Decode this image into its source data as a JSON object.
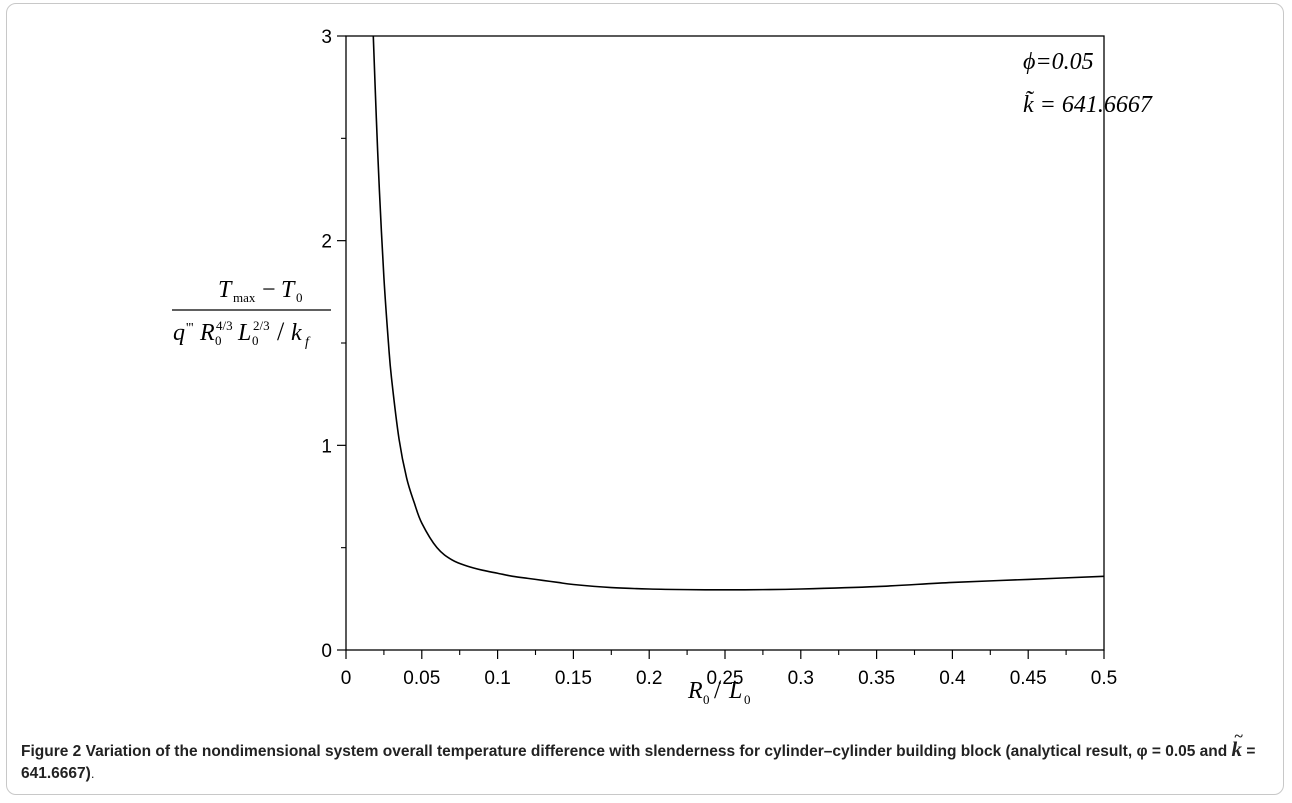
{
  "chart_data": {
    "type": "line",
    "title": "",
    "xlabel": "R0/L0",
    "ylabel": "(T_max − T_0) / (q''' R_0^{4/3} L_0^{2/3} / k_f)",
    "xlim": [
      0,
      0.5
    ],
    "ylim": [
      0,
      3
    ],
    "x_ticks": [
      "0",
      "0.05",
      "0.1",
      "0.15",
      "0.2",
      "0.25",
      "0.3",
      "0.35",
      "0.4",
      "0.45",
      "0.5"
    ],
    "y_ticks": [
      "0",
      "1",
      "2",
      "3"
    ],
    "grid": false,
    "series": [
      {
        "x": [
          0.018,
          0.02,
          0.022,
          0.025,
          0.028,
          0.03,
          0.035,
          0.04,
          0.045,
          0.05,
          0.06,
          0.07,
          0.08,
          0.09,
          0.1,
          0.11,
          0.12,
          0.13,
          0.14,
          0.15,
          0.175,
          0.2,
          0.225,
          0.25,
          0.275,
          0.3,
          0.35,
          0.4,
          0.45,
          0.5
        ],
        "y": [
          3.0,
          2.6,
          2.25,
          1.82,
          1.5,
          1.33,
          1.03,
          0.84,
          0.72,
          0.62,
          0.5,
          0.44,
          0.41,
          0.39,
          0.375,
          0.36,
          0.35,
          0.34,
          0.33,
          0.32,
          0.305,
          0.298,
          0.295,
          0.294,
          0.295,
          0.298,
          0.31,
          0.33,
          0.345,
          0.36
        ]
      }
    ],
    "annotations": {
      "phi_text": "ϕ=0.05",
      "k_text": "k̃ = 641.6667"
    }
  },
  "caption": {
    "label": "Figure 2",
    "text_before": " Variation of the nondimensional system overall temperature difference with slenderness for cylinder–cylinder building block (analytical result, ",
    "phi": "φ = 0.05",
    "and": " and ",
    "k_letter": "k",
    "k_value": " = 641.6667)",
    "period": "."
  }
}
